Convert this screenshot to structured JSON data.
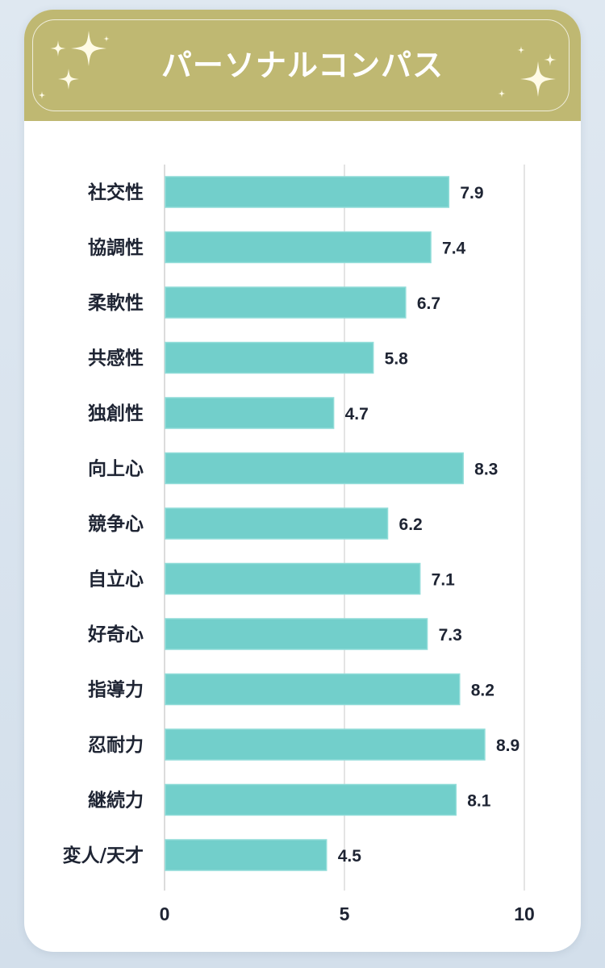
{
  "header": {
    "title": "パーソナルコンパス"
  },
  "colors": {
    "header": "#bfb872",
    "bar": "#72cfcb",
    "bar_border": "#8fdcd8",
    "grid": "#dcdcdc",
    "text": "#1e2433"
  },
  "chart_data": {
    "type": "bar",
    "orientation": "horizontal",
    "categories": [
      "社交性",
      "協調性",
      "柔軟性",
      "共感性",
      "独創性",
      "向上心",
      "競争心",
      "自立心",
      "好奇心",
      "指導力",
      "忍耐力",
      "継続力",
      "変人/天才"
    ],
    "values": [
      7.9,
      7.4,
      6.7,
      5.8,
      4.7,
      8.3,
      6.2,
      7.1,
      7.3,
      8.2,
      8.9,
      8.1,
      4.5
    ],
    "value_labels": [
      "7.9",
      "7.4",
      "6.7",
      "5.8",
      "4.7",
      "8.3",
      "6.2",
      "7.1",
      "7.3",
      "8.2",
      "8.9",
      "8.1",
      "4.5"
    ],
    "xlim": [
      0,
      10
    ],
    "ticks": [
      0,
      5,
      10
    ],
    "tick_labels": [
      "0",
      "5",
      "10"
    ],
    "grid": true
  }
}
